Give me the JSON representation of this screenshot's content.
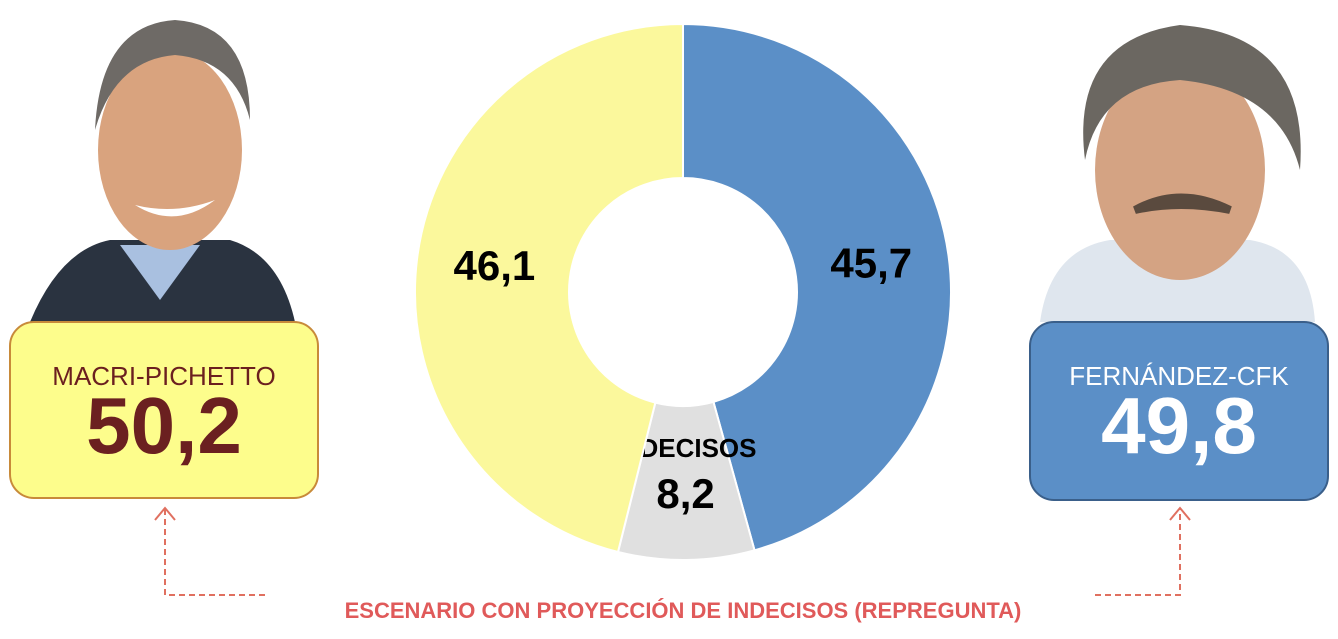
{
  "chart_data": {
    "type": "donut",
    "categories": [
      null,
      "INDECISOS",
      null
    ],
    "values": [
      45.7,
      8.2,
      46.1
    ],
    "value_labels": [
      "45,7",
      "8,2",
      "46,1"
    ],
    "colors": [
      "#5b8fc7",
      "#e0e0e0",
      "#fbf89c"
    ]
  },
  "boxes": [
    {
      "name": "MACRI-PICHETTO",
      "value": "50,2"
    },
    {
      "name": "FERNÁNDEZ-CFK",
      "value": "49,8"
    }
  ],
  "footer": "ESCENARIO CON PROYECCIÓN DE INDECISOS (REPREGUNTA)"
}
